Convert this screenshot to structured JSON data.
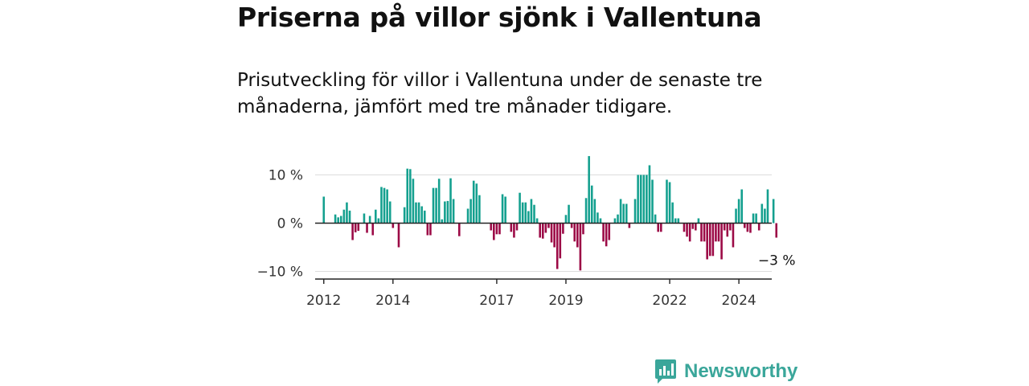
{
  "header": {
    "title": "Priserna på villor sjönk i Vallentuna",
    "subtitle": "Prisutveckling för villor i Vallentuna under de senaste tre månaderna, jämfört med tre månader tidigare."
  },
  "brand": {
    "name": "Newsworthy",
    "color": "#3aa69a"
  },
  "chart_data": {
    "type": "bar",
    "title": "Priserna på villor sjönk i Vallentuna",
    "xlabel": "",
    "ylabel": "",
    "ylim": [
      -12,
      12
    ],
    "yticks": [
      {
        "value": 10,
        "label": "10 %"
      },
      {
        "value": 0,
        "label": "0 %"
      },
      {
        "value": -10,
        "label": "−10 %"
      }
    ],
    "xticks": [
      {
        "value": 2012,
        "label": "2012"
      },
      {
        "value": 2014,
        "label": "2014"
      },
      {
        "value": 2017,
        "label": "2017"
      },
      {
        "value": 2019,
        "label": "2019"
      },
      {
        "value": 2022,
        "label": "2022"
      },
      {
        "value": 2024,
        "label": "2024"
      }
    ],
    "x_start": 2012.0,
    "x_step": 0.0833333,
    "positive_color": "#14a08f",
    "negative_color": "#9c0a46",
    "last_value_label": "−3 %",
    "values": [
      5.5,
      0,
      0,
      0,
      1.8,
      1.2,
      1.5,
      2.8,
      4.3,
      2.6,
      -3.5,
      -1.9,
      -1.6,
      0,
      2.0,
      -2.0,
      1.5,
      -2.5,
      2.8,
      1.0,
      7.5,
      7.3,
      7.0,
      4.5,
      -1.0,
      0,
      -5.0,
      0,
      3.3,
      11.3,
      11.2,
      9.2,
      4.3,
      4.3,
      3.5,
      2.6,
      -2.5,
      -2.5,
      7.3,
      7.3,
      9.2,
      0.8,
      4.5,
      4.6,
      9.3,
      5.0,
      0,
      -2.7,
      0,
      0,
      3.0,
      5.0,
      8.8,
      8.2,
      5.8,
      0,
      0,
      0,
      -1.5,
      -3.5,
      -2.3,
      -2.3,
      6.0,
      5.5,
      0,
      -1.8,
      -3.0,
      -1.5,
      6.3,
      4.3,
      4.3,
      2.5,
      5.0,
      3.8,
      1.0,
      -3.0,
      -3.2,
      -2.0,
      -1.0,
      -4.0,
      -5.0,
      -9.5,
      -7.3,
      -2.2,
      1.7,
      3.8,
      -1.0,
      -3.8,
      -5.0,
      -9.8,
      -2.3,
      5.2,
      13.9,
      7.8,
      5.0,
      2.2,
      1.0,
      -3.8,
      -4.8,
      -3.5,
      0,
      1.0,
      1.8,
      5.0,
      4.0,
      4.0,
      -1.0,
      0,
      5.0,
      10.0,
      10.0,
      10.0,
      10.0,
      12.0,
      9.0,
      1.8,
      -1.8,
      -1.8,
      0,
      9.0,
      8.5,
      4.3,
      1.0,
      1.0,
      0,
      -1.8,
      -2.8,
      -3.8,
      -1.2,
      -1.5,
      1.0,
      -3.8,
      -3.8,
      -7.5,
      -6.8,
      -6.8,
      -3.8,
      -3.8,
      -7.5,
      -1.5,
      -2.8,
      -1.5,
      -5.0,
      3.0,
      5.0,
      7.0,
      -1.0,
      -1.8,
      -2.0,
      2.0,
      2.0,
      -1.5,
      4.0,
      3.0,
      7.0,
      0,
      5.0,
      -3.0
    ]
  }
}
